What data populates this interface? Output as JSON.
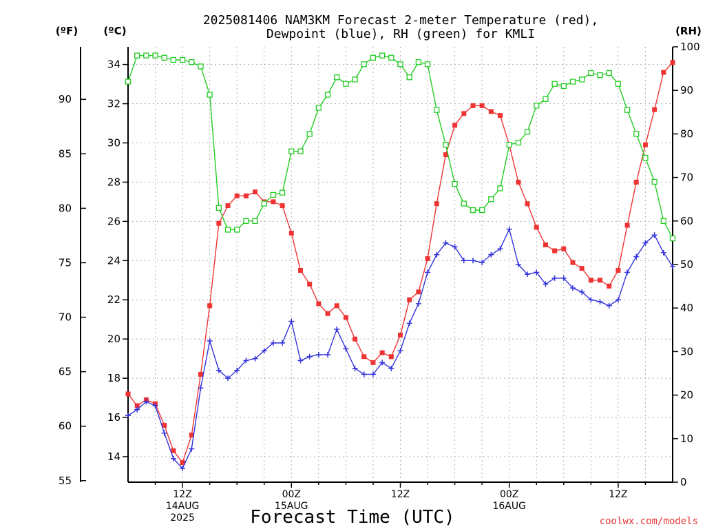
{
  "chart_data": {
    "type": "line",
    "title": [
      "2025081406 NAM3KM Forecast 2-meter Temperature (red),",
      "Dewpoint (blue), RH (green) for KMLI"
    ],
    "xlabel": "Forecast Time (UTC)",
    "credit": "coolwx.com/models",
    "unit_labels": {
      "fahrenheit": "(ºF)",
      "celsius": "(ºC)",
      "rh": "(RH)"
    },
    "ylim_c": [
      12.7,
      34.9
    ],
    "ylim_rh": [
      0,
      100
    ],
    "celsius_ticks": [
      14,
      16,
      18,
      20,
      22,
      24,
      26,
      28,
      30,
      32,
      34
    ],
    "fahrenheit_ticks": [
      55,
      60,
      65,
      70,
      75,
      80,
      85,
      90
    ],
    "rh_ticks": [
      0,
      10,
      20,
      30,
      40,
      50,
      60,
      70,
      80,
      90,
      100
    ],
    "x_range_hours": [
      0,
      60
    ],
    "x_ticks": [
      {
        "hour": 6,
        "lines": [
          "12Z",
          "14AUG",
          "2025"
        ]
      },
      {
        "hour": 18,
        "lines": [
          "00Z",
          "15AUG"
        ]
      },
      {
        "hour": 30,
        "lines": [
          "12Z"
        ]
      },
      {
        "hour": 42,
        "lines": [
          "00Z",
          "16AUG"
        ]
      },
      {
        "hour": 54,
        "lines": [
          "12Z"
        ]
      }
    ],
    "series": [
      {
        "key": "temperature",
        "color": "#ee3333",
        "marker": "filled-square",
        "values": [
          17.2,
          16.6,
          16.9,
          16.7,
          15.6,
          14.3,
          13.7,
          15.1,
          18.2,
          21.7,
          25.9,
          26.8,
          27.3,
          27.3,
          27.5,
          27.0,
          27.0,
          26.8,
          25.4,
          23.5,
          22.8,
          21.8,
          21.3,
          21.7,
          21.1,
          20.0,
          19.1,
          18.8,
          19.3,
          19.1,
          20.2,
          22.0,
          22.4,
          24.1,
          26.9,
          29.4,
          30.9,
          31.5,
          31.9,
          31.9,
          31.6,
          31.4,
          29.9,
          28.0,
          26.9,
          25.7,
          24.8,
          24.5,
          24.6,
          23.9,
          23.6,
          23.0,
          23.0,
          22.7,
          23.5,
          25.8,
          28.0,
          29.9,
          31.7,
          33.6,
          34.1
        ]
      },
      {
        "key": "dewpoint",
        "color": "#3333dd",
        "marker": "plus",
        "values": [
          16.1,
          16.4,
          16.8,
          16.6,
          15.2,
          13.9,
          13.4,
          14.4,
          17.5,
          19.9,
          18.4,
          18.0,
          18.4,
          18.9,
          19.0,
          19.4,
          19.8,
          19.8,
          20.9,
          18.9,
          19.1,
          19.2,
          19.2,
          20.5,
          19.5,
          18.5,
          18.2,
          18.2,
          18.8,
          18.5,
          19.4,
          20.8,
          21.8,
          23.4,
          24.3,
          24.9,
          24.7,
          24.0,
          24.0,
          23.9,
          24.3,
          24.6,
          25.6,
          23.8,
          23.3,
          23.4,
          22.8,
          23.1,
          23.1,
          22.6,
          22.4,
          22.0,
          21.9,
          21.7,
          22.0,
          23.4,
          24.2,
          24.9,
          25.3,
          24.4,
          23.7
        ]
      },
      {
        "key": "relative_humidity",
        "color": "#22cc22",
        "marker": "open-square",
        "values": [
          92,
          98,
          98,
          98,
          97.5,
          97,
          97,
          96.5,
          95.5,
          89,
          63,
          58,
          58,
          60,
          60,
          64,
          66,
          66.5,
          76,
          76,
          80,
          86,
          89,
          93,
          91.5,
          92.5,
          96,
          97.5,
          98,
          97.5,
          96,
          93,
          96.5,
          96,
          85.5,
          77.5,
          68.5,
          64,
          62.5,
          62.5,
          65,
          67.5,
          77.5,
          78,
          80.5,
          86.5,
          88,
          91.5,
          91,
          92,
          92.5,
          94,
          93.5,
          94,
          91.5,
          85.5,
          80,
          74.5,
          69,
          60,
          56
        ]
      }
    ]
  }
}
